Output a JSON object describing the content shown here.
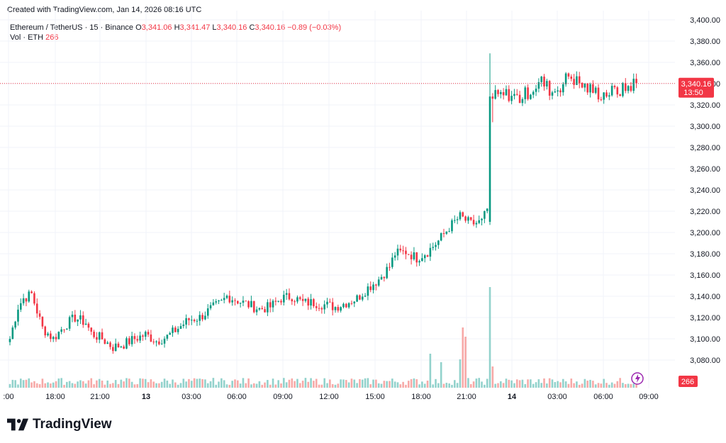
{
  "header": {
    "created_text": "Created with TradingView.com, Jan 14, 2026 08:16 UTC"
  },
  "legend": {
    "symbol": "Ethereum / TetherUS · 15 · Binance",
    "o_label": "O",
    "o_value": "3,341.06",
    "h_label": "H",
    "h_value": "3,341.47",
    "l_label": "L",
    "l_value": "3,340.16",
    "c_label": "C",
    "c_value": "3,340.16",
    "change": "−0.89 (−0.03%)",
    "vol_label": "Vol · ETH",
    "vol_value": "266"
  },
  "price_tag": {
    "price": "3,340.16",
    "countdown": "13:50",
    "color": "#f23645"
  },
  "volume_tag": {
    "value": "266",
    "color": "#f23645"
  },
  "colors": {
    "up": "#089981",
    "down": "#f23645",
    "up_vol": "#92d2cc",
    "down_vol": "#f7a9a7",
    "grid": "#f0f3fa"
  },
  "brand": {
    "name": "TradingView"
  },
  "chart_data": {
    "type": "candlestick",
    "interval": "15",
    "y_ticks": [
      "3,080.00",
      "3,100.00",
      "3,120.00",
      "3,140.00",
      "3,160.00",
      "3,180.00",
      "3,200.00",
      "3,220.00",
      "3,240.00",
      "3,260.00",
      "3,280.00",
      "3,300.00",
      "3,320.00",
      "3,340.00",
      "3,360.00",
      "3,380.00",
      "3,400.00"
    ],
    "y_tick_values": [
      3080,
      3100,
      3120,
      3140,
      3160,
      3180,
      3200,
      3220,
      3240,
      3260,
      3280,
      3300,
      3320,
      3340,
      3360,
      3380,
      3400
    ],
    "x_ticks": [
      ":00",
      "18:00",
      "21:00",
      "13",
      "03:00",
      "06:00",
      "09:00",
      "12:00",
      "15:00",
      "18:00",
      "21:00",
      "14",
      "03:00",
      "06:00",
      "09:00"
    ],
    "x_tick_bold": [
      false,
      false,
      false,
      true,
      false,
      false,
      false,
      false,
      false,
      false,
      false,
      true,
      false,
      false,
      false
    ],
    "last_price": 3340.16,
    "ylim": [
      3070,
      3404
    ],
    "anchors": [
      [
        0,
        3100
      ],
      [
        3,
        3130
      ],
      [
        5,
        3138
      ],
      [
        8,
        3142
      ],
      [
        12,
        3110
      ],
      [
        16,
        3100
      ],
      [
        20,
        3112
      ],
      [
        24,
        3120
      ],
      [
        28,
        3115
      ],
      [
        30,
        3105
      ],
      [
        34,
        3100
      ],
      [
        38,
        3092
      ],
      [
        42,
        3095
      ],
      [
        46,
        3100
      ],
      [
        50,
        3104
      ],
      [
        54,
        3098
      ],
      [
        58,
        3102
      ],
      [
        62,
        3110
      ],
      [
        66,
        3118
      ],
      [
        70,
        3120
      ],
      [
        74,
        3128
      ],
      [
        78,
        3134
      ],
      [
        80,
        3140
      ],
      [
        84,
        3136
      ],
      [
        88,
        3132
      ],
      [
        92,
        3128
      ],
      [
        96,
        3130
      ],
      [
        100,
        3138
      ],
      [
        104,
        3140
      ],
      [
        108,
        3134
      ],
      [
        112,
        3134
      ],
      [
        116,
        3132
      ],
      [
        120,
        3130
      ],
      [
        124,
        3134
      ],
      [
        128,
        3138
      ],
      [
        132,
        3148
      ],
      [
        136,
        3156
      ],
      [
        140,
        3168
      ],
      [
        142,
        3180
      ],
      [
        146,
        3182
      ],
      [
        150,
        3176
      ],
      [
        154,
        3182
      ],
      [
        158,
        3192
      ],
      [
        162,
        3205
      ],
      [
        166,
        3215
      ],
      [
        170,
        3208
      ],
      [
        174,
        3210
      ],
      [
        176,
        3222
      ],
      [
        177,
        3326
      ],
      [
        180,
        3328
      ],
      [
        184,
        3330
      ],
      [
        188,
        3326
      ],
      [
        192,
        3334
      ],
      [
        196,
        3342
      ],
      [
        200,
        3332
      ],
      [
        204,
        3340
      ],
      [
        206,
        3348
      ],
      [
        210,
        3340
      ],
      [
        214,
        3334
      ],
      [
        218,
        3330
      ],
      [
        222,
        3332
      ],
      [
        226,
        3334
      ],
      [
        230,
        3340
      ]
    ],
    "volume_spikes": [
      [
        167,
        85
      ],
      [
        168,
        72
      ],
      [
        177,
        142
      ],
      [
        178,
        30
      ],
      [
        166,
        40
      ],
      [
        155,
        48
      ],
      [
        159,
        36
      ]
    ]
  }
}
